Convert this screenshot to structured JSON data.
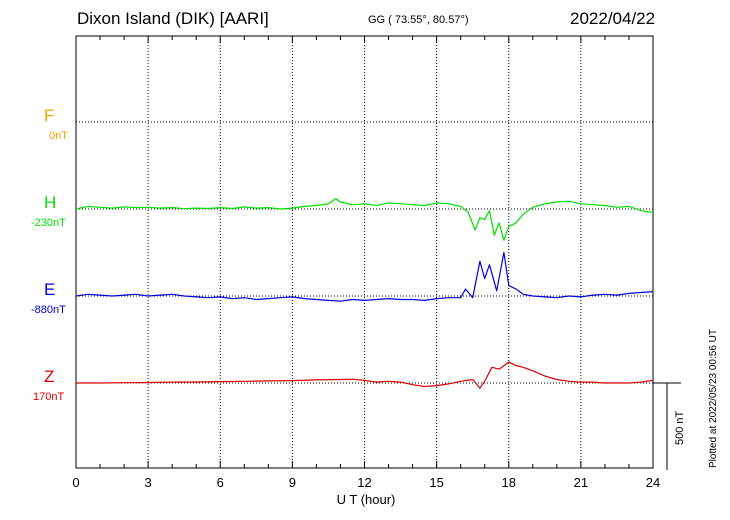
{
  "header": {
    "station": "Dixon Island (DIK)  [AARI]",
    "coords": "GG ( 73.55°,  80.57°)",
    "date": "2022/04/22"
  },
  "side_notes": {
    "plotted": "Plotted at 2022/05/23 00:56 UT",
    "scale": "500 nT"
  },
  "colors": {
    "F": "#f0a000",
    "H": "#00e000",
    "E": "#0000dd",
    "Z": "#dd0000"
  },
  "chart_data": {
    "type": "line",
    "title": "Dixon Island (DIK)  [AARI]",
    "xlabel": "U T (hour)",
    "ylabel": "",
    "xlim": [
      0,
      24
    ],
    "x_ticks": [
      0,
      3,
      6,
      9,
      12,
      15,
      18,
      21,
      24
    ],
    "grid": true,
    "scale_bar_nT": 500,
    "channels": [
      {
        "name": "F",
        "offset": "0nT"
      },
      {
        "name": "H",
        "offset": "-230nT"
      },
      {
        "name": "E",
        "offset": "-880nT"
      },
      {
        "name": "Z",
        "offset": "170nT"
      }
    ],
    "series": [
      {
        "name": "H",
        "x": [
          0,
          0.5,
          1,
          1.5,
          2,
          2.5,
          3,
          3.5,
          4,
          4.5,
          5,
          5.5,
          6,
          6.5,
          7,
          7.5,
          8,
          8.5,
          9,
          9.5,
          10,
          10.5,
          10.8,
          11,
          11.5,
          12,
          12.5,
          13,
          13.5,
          14,
          14.5,
          15,
          15.5,
          16,
          16.3,
          16.6,
          16.8,
          17,
          17.2,
          17.4,
          17.6,
          17.8,
          18,
          18.3,
          18.6,
          19,
          19.5,
          20,
          20.5,
          21,
          21.5,
          22,
          22.5,
          23,
          23.5,
          24
        ],
        "values": [
          0,
          15,
          10,
          5,
          12,
          8,
          10,
          5,
          8,
          2,
          5,
          3,
          8,
          3,
          12,
          5,
          8,
          0,
          5,
          15,
          20,
          30,
          60,
          40,
          25,
          30,
          20,
          35,
          30,
          25,
          20,
          35,
          30,
          15,
          -15,
          -120,
          -50,
          -60,
          -10,
          -150,
          -80,
          -180,
          -100,
          -80,
          -30,
          10,
          30,
          40,
          45,
          30,
          25,
          20,
          10,
          15,
          -10,
          -20
        ]
      },
      {
        "name": "E",
        "x": [
          0,
          0.5,
          1,
          1.5,
          2,
          2.5,
          3,
          3.5,
          4,
          4.5,
          5,
          5.5,
          6,
          6.5,
          7,
          7.5,
          8,
          8.5,
          9,
          9.5,
          10,
          10.5,
          11,
          11.5,
          12,
          12.5,
          13,
          13.5,
          14,
          14.5,
          15,
          15.5,
          16,
          16.2,
          16.5,
          16.8,
          17,
          17.2,
          17.5,
          17.8,
          18,
          18.3,
          18.6,
          19,
          19.5,
          20,
          20.5,
          21,
          21.5,
          22,
          22.5,
          23,
          23.5,
          24
        ],
        "values": [
          0,
          10,
          5,
          0,
          5,
          10,
          0,
          5,
          10,
          0,
          -5,
          -10,
          -5,
          -15,
          -10,
          -20,
          -15,
          -10,
          -5,
          -15,
          -20,
          -25,
          -30,
          -20,
          -25,
          -20,
          -15,
          -20,
          -20,
          -25,
          -15,
          -10,
          -10,
          40,
          -10,
          200,
          100,
          180,
          30,
          250,
          60,
          40,
          10,
          0,
          -5,
          -10,
          0,
          -5,
          5,
          10,
          5,
          15,
          20,
          25
        ]
      },
      {
        "name": "Z",
        "x": [
          0,
          1,
          2,
          3,
          4,
          5,
          6,
          7,
          8,
          9,
          10,
          11,
          11.5,
          12,
          12.5,
          13,
          13.5,
          14,
          14.5,
          15,
          15.5,
          16,
          16.5,
          16.8,
          17,
          17.3,
          17.6,
          18,
          18.3,
          18.6,
          19,
          19.5,
          20,
          20.5,
          21,
          21.5,
          22,
          22.5,
          23,
          23.5,
          24
        ],
        "values": [
          0,
          0,
          2,
          3,
          5,
          6,
          8,
          10,
          12,
          14,
          18,
          20,
          22,
          15,
          5,
          10,
          5,
          -10,
          -20,
          -15,
          -5,
          10,
          20,
          -30,
          10,
          90,
          80,
          120,
          100,
          90,
          70,
          40,
          20,
          10,
          5,
          5,
          0,
          0,
          0,
          5,
          15
        ]
      }
    ]
  }
}
